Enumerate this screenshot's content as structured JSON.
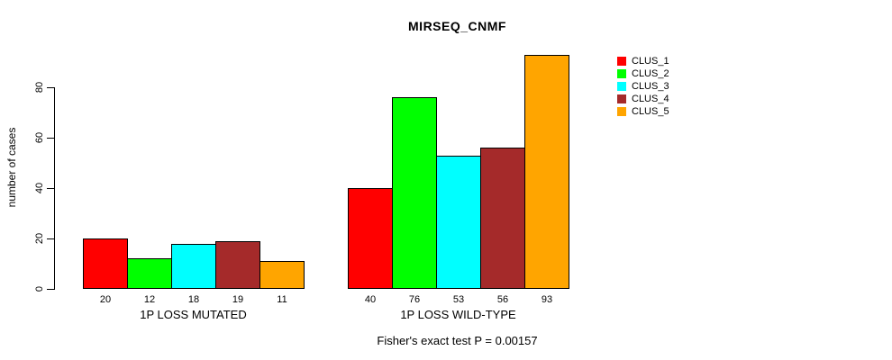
{
  "page": {
    "background_color": "#FFFFFF",
    "text_color": "#000000"
  },
  "chart_data": {
    "type": "bar",
    "title": "MIRSEQ_CNMF",
    "ylabel": "number of cases",
    "xlabel": "",
    "ylim": [
      0,
      93
    ],
    "yticks": [
      0,
      20,
      40,
      60,
      80
    ],
    "grid": false,
    "legend_position": "right-inside",
    "series": [
      {
        "name": "CLUS_1",
        "color": "#FF0000"
      },
      {
        "name": "CLUS_2",
        "color": "#00FF00"
      },
      {
        "name": "CLUS_3",
        "color": "#00FFFF"
      },
      {
        "name": "CLUS_4",
        "color": "#A52A2A"
      },
      {
        "name": "CLUS_5",
        "color": "#FFA500"
      }
    ],
    "groups": [
      {
        "label": "1P LOSS MUTATED",
        "values": [
          20,
          12,
          18,
          19,
          11
        ]
      },
      {
        "label": "1P LOSS WILD-TYPE",
        "values": [
          40,
          76,
          53,
          56,
          93
        ]
      }
    ],
    "annotation": "Fisher's exact test P = 0.00157"
  }
}
